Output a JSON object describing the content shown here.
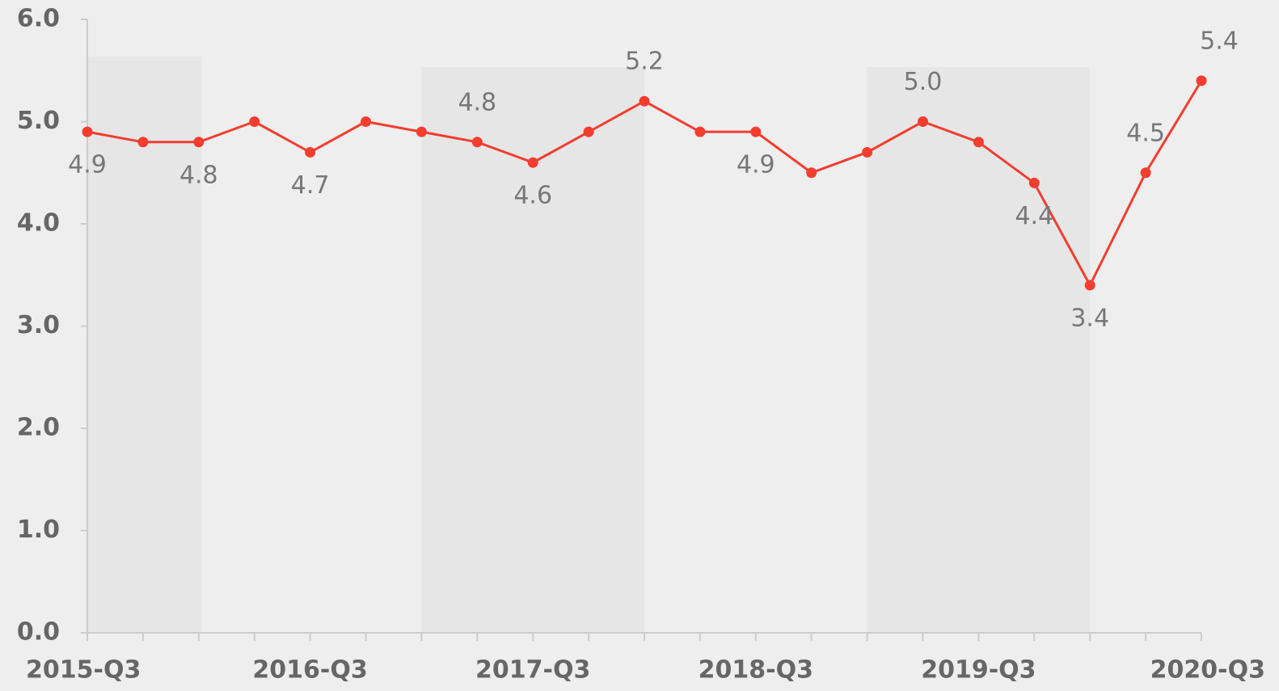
{
  "chart_data": {
    "type": "line",
    "categories": [
      "2015-Q3",
      null,
      null,
      null,
      "2016-Q3",
      null,
      null,
      null,
      "2017-Q3",
      null,
      null,
      null,
      "2018-Q3",
      null,
      null,
      null,
      "2019-Q3",
      null,
      null,
      null,
      "2020-Q3"
    ],
    "series": [
      {
        "color": "#f23d2f",
        "values": [
          4.9,
          4.8,
          4.8,
          5.0,
          4.7,
          5.0,
          4.9,
          4.8,
          4.6,
          4.9,
          5.2,
          4.9,
          4.9,
          4.5,
          4.7,
          5.0,
          4.8,
          4.4,
          3.4,
          4.5,
          5.4
        ],
        "value_labels": [
          "4.9",
          null,
          "4.8",
          null,
          "4.7",
          null,
          null,
          "4.8",
          "4.6",
          null,
          "5.2",
          null,
          "4.9",
          null,
          null,
          "5.0",
          null,
          "4.4",
          "3.4",
          "4.5",
          "5.4"
        ]
      }
    ],
    "ylim": [
      0,
      6
    ],
    "yticks": [
      {
        "value": 0,
        "label": "0.0"
      },
      {
        "value": 1,
        "label": "1.0"
      },
      {
        "value": 2,
        "label": "2.0"
      },
      {
        "value": 3,
        "label": "3.0"
      },
      {
        "value": 4,
        "label": "4.0"
      },
      {
        "value": 5,
        "label": "5.0"
      },
      {
        "value": 6,
        "label": "6.0"
      }
    ],
    "grid": false
  }
}
